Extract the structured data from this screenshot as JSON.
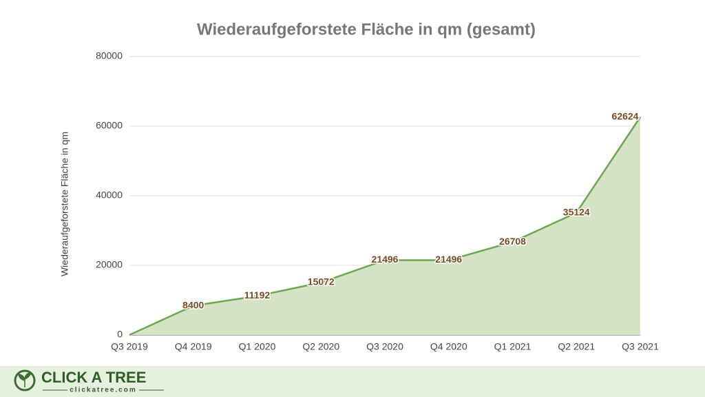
{
  "chart_data": {
    "type": "area",
    "title": "Wiederaufgeforstete Fläche in qm (gesamt)",
    "y_label": "Wiederaufgeforstete Fläche in qm",
    "categories": [
      "Q3 2019",
      "Q4 2019",
      "Q1 2020",
      "Q2 2020",
      "Q3 2020",
      "Q4 2020",
      "Q1 2021",
      "Q2 2021",
      "Q3 2021"
    ],
    "series": [
      {
        "color": "#6aa84f",
        "values": [
          0,
          8400,
          11192,
          15072,
          21496,
          21496,
          26708,
          35124,
          62624
        ],
        "value_labels": [
          null,
          "8400",
          "11192",
          "15072",
          "21496",
          "21496",
          "26708",
          "35124",
          "62624"
        ]
      }
    ],
    "ylim": [
      0,
      80000
    ],
    "yticks": [
      0,
      20000,
      40000,
      60000,
      80000
    ],
    "grid": true
  },
  "footer": {
    "brand": "CLICK A TREE",
    "url": "clickatree.com"
  }
}
